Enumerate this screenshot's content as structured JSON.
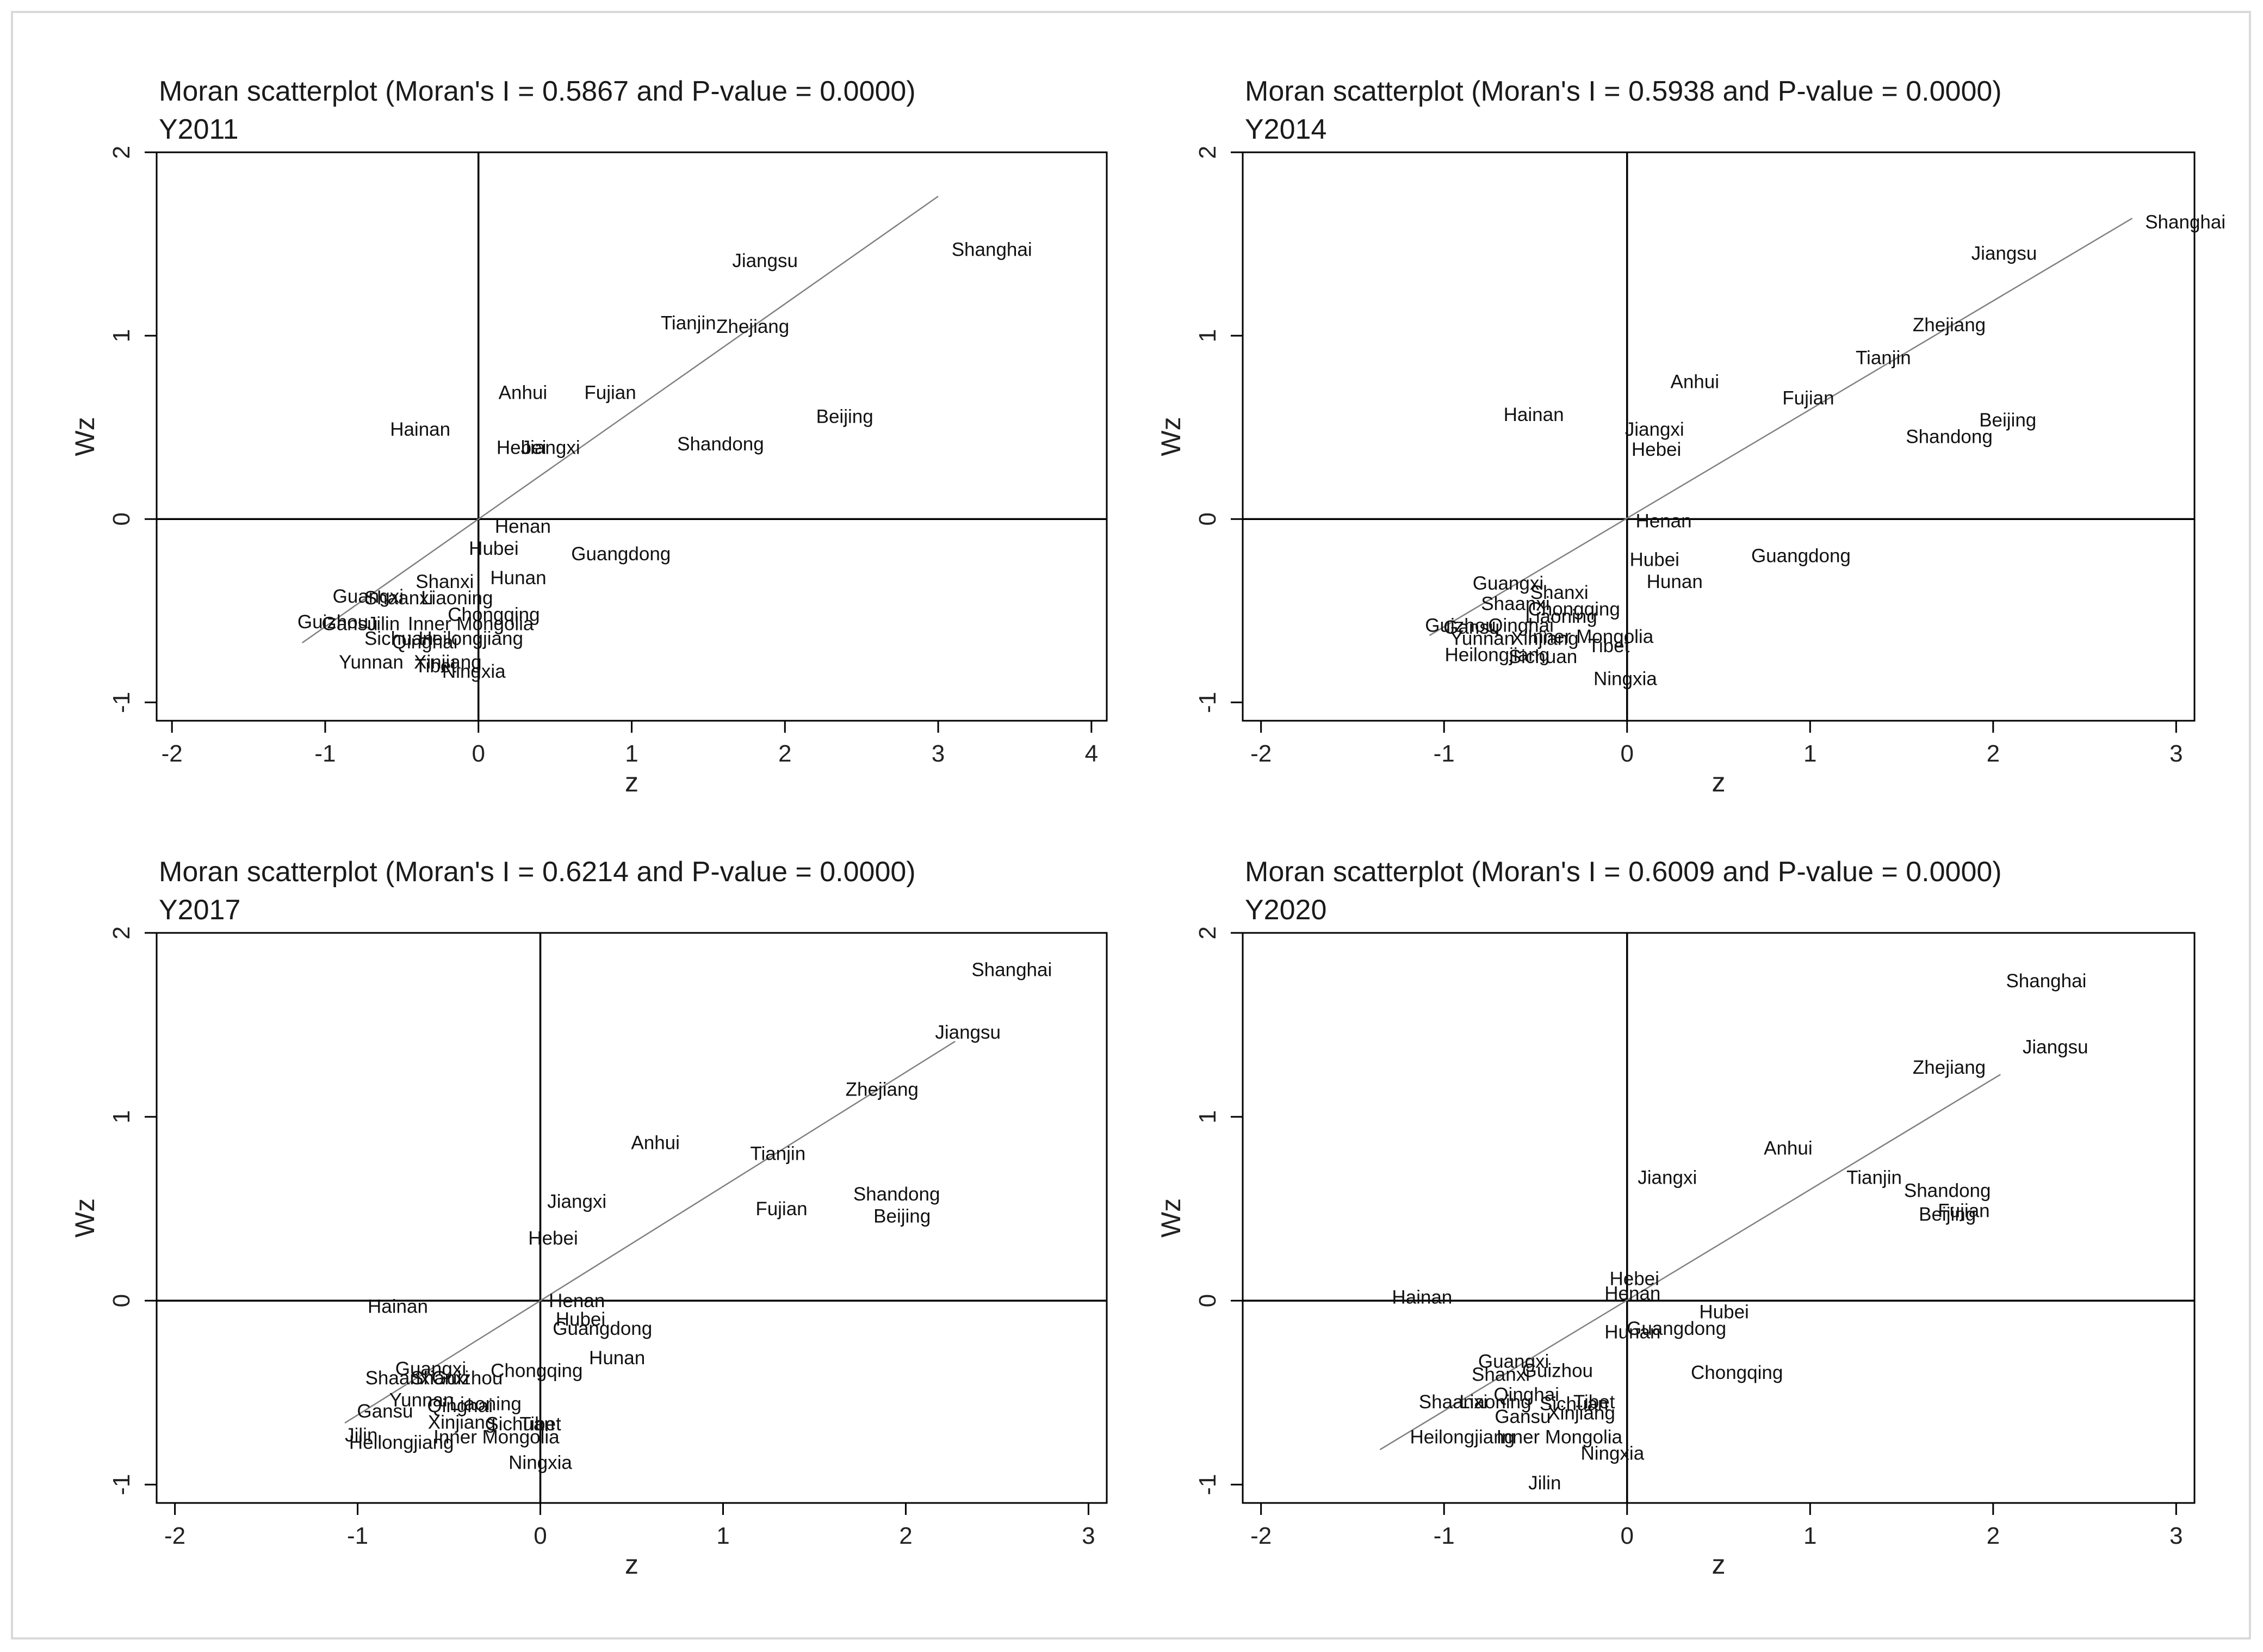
{
  "figure": {
    "background": "#ffffff",
    "frame_color": "#d9d9d9",
    "line_color": "#000000",
    "fit_color": "#808080"
  },
  "chart_data": [
    {
      "type": "scatter",
      "title": "Moran scatterplot (Moran's I = 0.5867 and P-value = 0.0000)",
      "subtitle": "Y2011",
      "xlabel": "z",
      "ylabel": "Wz",
      "xlim": [
        -2.1,
        4.1
      ],
      "ylim": [
        -1.1,
        2.0
      ],
      "xticks": [
        -2,
        -1,
        0,
        1,
        2,
        3,
        4
      ],
      "yticks": [
        -1,
        0,
        1,
        2
      ],
      "xtick_labels": [
        "-2",
        "-1",
        "0",
        "1",
        "2",
        "3",
        "4"
      ],
      "ytick_labels": [
        "-1",
        "0",
        "1",
        "2"
      ],
      "fit_line": {
        "x": [
          -1.15,
          3.0
        ],
        "y": [
          -0.675,
          1.76
        ]
      },
      "points": [
        {
          "label": "Shanghai",
          "x": 3.35,
          "y": 1.47
        },
        {
          "label": "Jiangsu",
          "x": 1.87,
          "y": 1.41
        },
        {
          "label": "Tianjin",
          "x": 1.37,
          "y": 1.07
        },
        {
          "label": "Zhejiang",
          "x": 1.79,
          "y": 1.05
        },
        {
          "label": "Anhui",
          "x": 0.29,
          "y": 0.69
        },
        {
          "label": "Fujian",
          "x": 0.86,
          "y": 0.69
        },
        {
          "label": "Beijing",
          "x": 2.39,
          "y": 0.56
        },
        {
          "label": "Hainan",
          "x": -0.38,
          "y": 0.49
        },
        {
          "label": "Hebei",
          "x": 0.28,
          "y": 0.39
        },
        {
          "label": "Jiangxi",
          "x": 0.47,
          "y": 0.39
        },
        {
          "label": "Shandong",
          "x": 1.58,
          "y": 0.41
        },
        {
          "label": "Henan",
          "x": 0.29,
          "y": -0.04
        },
        {
          "label": "Hubei",
          "x": 0.1,
          "y": -0.16
        },
        {
          "label": "Guangdong",
          "x": 0.93,
          "y": -0.19
        },
        {
          "label": "Hunan",
          "x": 0.26,
          "y": -0.32
        },
        {
          "label": "Shanxi",
          "x": -0.22,
          "y": -0.34
        },
        {
          "label": "Guangxi",
          "x": -0.72,
          "y": -0.42
        },
        {
          "label": "Shaanxi",
          "x": -0.52,
          "y": -0.43
        },
        {
          "label": "Liaoning",
          "x": -0.14,
          "y": -0.43
        },
        {
          "label": "Chongqing",
          "x": 0.1,
          "y": -0.52
        },
        {
          "label": "Guizhou",
          "x": -0.95,
          "y": -0.56
        },
        {
          "label": "Gansu",
          "x": -0.84,
          "y": -0.57
        },
        {
          "label": "Jilin",
          "x": -0.62,
          "y": -0.57
        },
        {
          "label": "Inner Mongolia",
          "x": -0.05,
          "y": -0.57
        },
        {
          "label": "Heilongjiang",
          "x": -0.05,
          "y": -0.65
        },
        {
          "label": "Sichuan",
          "x": -0.52,
          "y": -0.65
        },
        {
          "label": "Qinghai",
          "x": -0.35,
          "y": -0.67
        },
        {
          "label": "Yunnan",
          "x": -0.7,
          "y": -0.78
        },
        {
          "label": "Xinjiang",
          "x": -0.2,
          "y": -0.78
        },
        {
          "label": "Tibet",
          "x": -0.28,
          "y": -0.8
        },
        {
          "label": "Ningxia",
          "x": -0.03,
          "y": -0.83
        }
      ]
    },
    {
      "type": "scatter",
      "title": "Moran scatterplot (Moran's I = 0.5938 and P-value = 0.0000)",
      "subtitle": "Y2014",
      "xlabel": "z",
      "ylabel": "Wz",
      "xlim": [
        -2.1,
        3.1
      ],
      "ylim": [
        -1.1,
        2.0
      ],
      "xticks": [
        -2,
        -1,
        0,
        1,
        2,
        3
      ],
      "yticks": [
        -1,
        0,
        1,
        2
      ],
      "xtick_labels": [
        "-2",
        "-1",
        "0",
        "1",
        "2",
        "3"
      ],
      "ytick_labels": [
        "-1",
        "0",
        "1",
        "2"
      ],
      "fit_line": {
        "x": [
          -1.08,
          2.76
        ],
        "y": [
          -0.635,
          1.64
        ]
      },
      "points": [
        {
          "label": "Shanghai",
          "x": 3.05,
          "y": 1.62
        },
        {
          "label": "Jiangsu",
          "x": 2.06,
          "y": 1.45
        },
        {
          "label": "Zhejiang",
          "x": 1.76,
          "y": 1.06
        },
        {
          "label": "Tianjin",
          "x": 1.4,
          "y": 0.88
        },
        {
          "label": "Anhui",
          "x": 0.37,
          "y": 0.75
        },
        {
          "label": "Fujian",
          "x": 0.99,
          "y": 0.66
        },
        {
          "label": "Hainan",
          "x": -0.51,
          "y": 0.57
        },
        {
          "label": "Jiangxi",
          "x": 0.15,
          "y": 0.49
        },
        {
          "label": "Hebei",
          "x": 0.16,
          "y": 0.38
        },
        {
          "label": "Beijing",
          "x": 2.08,
          "y": 0.54
        },
        {
          "label": "Shandong",
          "x": 1.76,
          "y": 0.45
        },
        {
          "label": "Henan",
          "x": 0.2,
          "y": -0.01
        },
        {
          "label": "Hubei",
          "x": 0.15,
          "y": -0.22
        },
        {
          "label": "Guangdong",
          "x": 0.95,
          "y": -0.2
        },
        {
          "label": "Hunan",
          "x": 0.26,
          "y": -0.34
        },
        {
          "label": "Guangxi",
          "x": -0.65,
          "y": -0.35
        },
        {
          "label": "Shanxi",
          "x": -0.37,
          "y": -0.4
        },
        {
          "label": "Shaanxi",
          "x": -0.61,
          "y": -0.46
        },
        {
          "label": "Chongqing",
          "x": -0.29,
          "y": -0.49
        },
        {
          "label": "Liaoning",
          "x": -0.36,
          "y": -0.53
        },
        {
          "label": "Guizhou",
          "x": -0.91,
          "y": -0.58
        },
        {
          "label": "Gansu",
          "x": -0.85,
          "y": -0.59
        },
        {
          "label": "Qinghai",
          "x": -0.58,
          "y": -0.58
        },
        {
          "label": "Yunnan",
          "x": -0.79,
          "y": -0.65
        },
        {
          "label": "Xinjiang",
          "x": -0.45,
          "y": -0.65
        },
        {
          "label": "Inner Mongolia",
          "x": -0.2,
          "y": -0.64
        },
        {
          "label": "Tibet",
          "x": -0.1,
          "y": -0.69
        },
        {
          "label": "Heilongjiang",
          "x": -0.71,
          "y": -0.74
        },
        {
          "label": "Sichuan",
          "x": -0.46,
          "y": -0.75
        },
        {
          "label": "Ningxia",
          "x": -0.01,
          "y": -0.87
        }
      ]
    },
    {
      "type": "scatter",
      "title": "Moran scatterplot (Moran's I = 0.6214 and P-value = 0.0000)",
      "subtitle": "Y2017",
      "xlabel": "z",
      "ylabel": "Wz",
      "xlim": [
        -2.1,
        3.1
      ],
      "ylim": [
        -1.1,
        2.0
      ],
      "xticks": [
        -2,
        -1,
        0,
        1,
        2,
        3
      ],
      "yticks": [
        -1,
        0,
        1,
        2
      ],
      "xtick_labels": [
        "-2",
        "-1",
        "0",
        "1",
        "2",
        "3"
      ],
      "ytick_labels": [
        "-1",
        "0",
        "1",
        "2"
      ],
      "fit_line": {
        "x": [
          -1.07,
          2.27
        ],
        "y": [
          -0.665,
          1.41
        ]
      },
      "points": [
        {
          "label": "Shanghai",
          "x": 2.58,
          "y": 1.8
        },
        {
          "label": "Jiangsu",
          "x": 2.34,
          "y": 1.46
        },
        {
          "label": "Zhejiang",
          "x": 1.87,
          "y": 1.15
        },
        {
          "label": "Anhui",
          "x": 0.63,
          "y": 0.86
        },
        {
          "label": "Tianjin",
          "x": 1.3,
          "y": 0.8
        },
        {
          "label": "Shandong",
          "x": 1.95,
          "y": 0.58
        },
        {
          "label": "Jiangxi",
          "x": 0.2,
          "y": 0.54
        },
        {
          "label": "Fujian",
          "x": 1.32,
          "y": 0.5
        },
        {
          "label": "Beijing",
          "x": 1.98,
          "y": 0.46
        },
        {
          "label": "Hebei",
          "x": 0.07,
          "y": 0.34
        },
        {
          "label": "Hainan",
          "x": -0.78,
          "y": -0.03
        },
        {
          "label": "Henan",
          "x": 0.2,
          "y": 0.0
        },
        {
          "label": "Hubei",
          "x": 0.22,
          "y": -0.1
        },
        {
          "label": "Guangdong",
          "x": 0.34,
          "y": -0.15
        },
        {
          "label": "Hunan",
          "x": 0.42,
          "y": -0.31
        },
        {
          "label": "Chongqing",
          "x": -0.02,
          "y": -0.38
        },
        {
          "label": "Guangxi",
          "x": -0.6,
          "y": -0.37
        },
        {
          "label": "Shaanxi",
          "x": -0.77,
          "y": -0.42
        },
        {
          "label": "Shanxi",
          "x": -0.55,
          "y": -0.42
        },
        {
          "label": "Guizhou",
          "x": -0.4,
          "y": -0.42
        },
        {
          "label": "Yunnan",
          "x": -0.65,
          "y": -0.54
        },
        {
          "label": "Liaoning",
          "x": -0.3,
          "y": -0.56
        },
        {
          "label": "Qinghai",
          "x": -0.44,
          "y": -0.57
        },
        {
          "label": "Gansu",
          "x": -0.85,
          "y": -0.6
        },
        {
          "label": "Xinjiang",
          "x": -0.43,
          "y": -0.66
        },
        {
          "label": "Sichuan",
          "x": -0.11,
          "y": -0.67
        },
        {
          "label": "Tibet",
          "x": 0.0,
          "y": -0.67
        },
        {
          "label": "Jilin",
          "x": -0.98,
          "y": -0.73
        },
        {
          "label": "Inner Mongolia",
          "x": -0.24,
          "y": -0.74
        },
        {
          "label": "Heilongjiang",
          "x": -0.76,
          "y": -0.77
        },
        {
          "label": "Ningxia",
          "x": 0.0,
          "y": -0.88
        }
      ]
    },
    {
      "type": "scatter",
      "title": "Moran scatterplot (Moran's I = 0.6009 and P-value = 0.0000)",
      "subtitle": "Y2020",
      "xlabel": "z",
      "ylabel": "Wz",
      "xlim": [
        -2.1,
        3.1
      ],
      "ylim": [
        -1.1,
        2.0
      ],
      "xticks": [
        -2,
        -1,
        0,
        1,
        2,
        3
      ],
      "yticks": [
        -1,
        0,
        1,
        2
      ],
      "xtick_labels": [
        "-2",
        "-1",
        "0",
        "1",
        "2",
        "3"
      ],
      "ytick_labels": [
        "-1",
        "0",
        "1",
        "2"
      ],
      "fit_line": {
        "x": [
          -1.35,
          2.04
        ],
        "y": [
          -0.81,
          1.23
        ]
      },
      "points": [
        {
          "label": "Shanghai",
          "x": 2.29,
          "y": 1.74
        },
        {
          "label": "Jiangsu",
          "x": 2.34,
          "y": 1.38
        },
        {
          "label": "Zhejiang",
          "x": 1.76,
          "y": 1.27
        },
        {
          "label": "Anhui",
          "x": 0.88,
          "y": 0.83
        },
        {
          "label": "Jiangxi",
          "x": 0.22,
          "y": 0.67
        },
        {
          "label": "Tianjin",
          "x": 1.35,
          "y": 0.67
        },
        {
          "label": "Shandong",
          "x": 1.75,
          "y": 0.6
        },
        {
          "label": "Beijing",
          "x": 1.75,
          "y": 0.47
        },
        {
          "label": "Fujian",
          "x": 1.84,
          "y": 0.49
        },
        {
          "label": "Hainan",
          "x": -1.12,
          "y": 0.02
        },
        {
          "label": "Hebei",
          "x": 0.04,
          "y": 0.12
        },
        {
          "label": "Henan",
          "x": 0.03,
          "y": 0.04
        },
        {
          "label": "Hubei",
          "x": 0.53,
          "y": -0.06
        },
        {
          "label": "Guangdong",
          "x": 0.27,
          "y": -0.15
        },
        {
          "label": "Hunan",
          "x": 0.03,
          "y": -0.17
        },
        {
          "label": "Chongqing",
          "x": 0.6,
          "y": -0.39
        },
        {
          "label": "Guangxi",
          "x": -0.62,
          "y": -0.33
        },
        {
          "label": "Guizhou",
          "x": -0.38,
          "y": -0.38
        },
        {
          "label": "Shanxi",
          "x": -0.69,
          "y": -0.4
        },
        {
          "label": "Qinghai",
          "x": -0.55,
          "y": -0.51
        },
        {
          "label": "Shaanxi",
          "x": -0.95,
          "y": -0.55
        },
        {
          "label": "Liaoning",
          "x": -0.72,
          "y": -0.55
        },
        {
          "label": "Tibet",
          "x": -0.18,
          "y": -0.55
        },
        {
          "label": "Sichuan",
          "x": -0.29,
          "y": -0.56
        },
        {
          "label": "Gansu",
          "x": -0.57,
          "y": -0.63
        },
        {
          "label": "Xinjiang",
          "x": -0.25,
          "y": -0.61
        },
        {
          "label": "Heilongjiang",
          "x": -0.9,
          "y": -0.74
        },
        {
          "label": "Inner Mongolia",
          "x": -0.37,
          "y": -0.74
        },
        {
          "label": "Ningxia",
          "x": -0.08,
          "y": -0.83
        },
        {
          "label": "Jilin",
          "x": -0.45,
          "y": -0.99
        }
      ]
    }
  ]
}
